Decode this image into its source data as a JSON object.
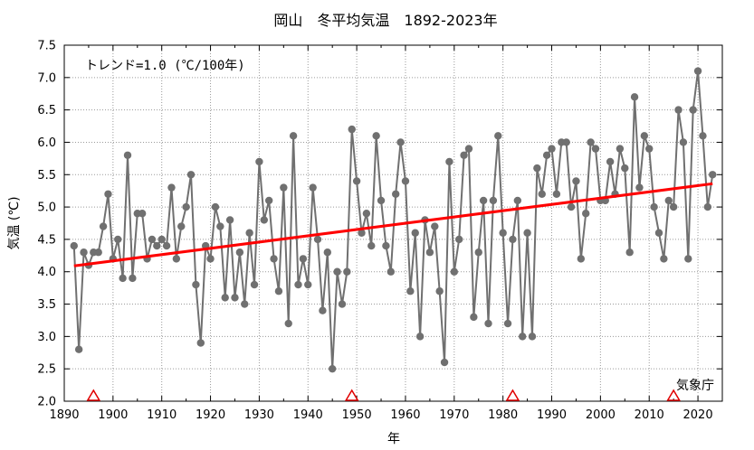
{
  "chart_data": {
    "type": "line",
    "title": "岡山　冬平均気温　1892-2023年",
    "xlabel": "年",
    "ylabel": "気温 (℃)",
    "trend_note": "トレンド=1.0 (℃/100年)",
    "source": "気象庁",
    "xlim": [
      1890,
      2025
    ],
    "ylim": [
      2.0,
      7.5
    ],
    "x_ticks": [
      1890,
      1900,
      1910,
      1920,
      1930,
      1940,
      1950,
      1960,
      1970,
      1980,
      1990,
      2000,
      2010,
      2020
    ],
    "y_ticks": [
      2.0,
      2.5,
      3.0,
      3.5,
      4.0,
      4.5,
      5.0,
      5.5,
      6.0,
      6.5,
      7.0,
      7.5
    ],
    "grid": true,
    "colors": {
      "series": "#707070",
      "trend": "#ff0000",
      "markers": "#e00000"
    },
    "series": [
      {
        "x": [
          1892,
          1893,
          1894,
          1895,
          1896,
          1897,
          1898,
          1899,
          1900,
          1901,
          1902,
          1903,
          1904,
          1905,
          1906,
          1907,
          1908,
          1909,
          1910,
          1911,
          1912,
          1913,
          1914,
          1915,
          1916,
          1917,
          1918,
          1919,
          1920,
          1921,
          1922,
          1923,
          1924,
          1925,
          1926,
          1927,
          1928,
          1929,
          1930,
          1931,
          1932,
          1933,
          1934,
          1935,
          1936,
          1937,
          1938,
          1939,
          1940,
          1941,
          1942,
          1943,
          1944,
          1945,
          1946,
          1947,
          1948,
          1949,
          1950,
          1951,
          1952,
          1953,
          1954,
          1955,
          1956,
          1957,
          1958,
          1959,
          1960,
          1961,
          1962,
          1963,
          1964,
          1965,
          1966,
          1967,
          1968,
          1969,
          1970,
          1971,
          1972,
          1973,
          1974,
          1975,
          1976,
          1977,
          1978,
          1979,
          1980,
          1981,
          1982,
          1983,
          1984,
          1985,
          1986,
          1987,
          1988,
          1989,
          1990,
          1991,
          1992,
          1993,
          1994,
          1995,
          1996,
          1997,
          1998,
          1999,
          2000,
          2001,
          2002,
          2003,
          2004,
          2005,
          2006,
          2007,
          2008,
          2009,
          2010,
          2011,
          2012,
          2013,
          2014,
          2015,
          2016,
          2017,
          2018,
          2019,
          2020,
          2021,
          2022,
          2023
        ],
        "values": [
          4.4,
          2.8,
          4.3,
          4.1,
          4.3,
          4.3,
          4.7,
          5.2,
          4.2,
          4.5,
          3.9,
          5.8,
          3.9,
          4.9,
          4.9,
          4.2,
          4.5,
          4.4,
          4.5,
          4.4,
          5.3,
          4.2,
          4.7,
          5.0,
          5.5,
          3.8,
          2.9,
          4.4,
          4.2,
          5.0,
          4.7,
          3.6,
          4.8,
          3.6,
          4.3,
          3.5,
          4.6,
          3.8,
          5.7,
          4.8,
          5.1,
          4.2,
          3.7,
          5.3,
          3.2,
          6.1,
          3.8,
          4.2,
          3.8,
          5.3,
          4.5,
          3.4,
          4.3,
          2.5,
          4.0,
          3.5,
          4.0,
          6.2,
          5.4,
          4.6,
          4.9,
          4.4,
          6.1,
          5.1,
          4.4,
          4.0,
          5.2,
          6.0,
          5.4,
          3.7,
          4.6,
          3.0,
          4.8,
          4.3,
          4.7,
          3.7,
          2.6,
          5.7,
          4.0,
          4.5,
          5.8,
          5.9,
          3.3,
          4.3,
          5.1,
          3.2,
          5.1,
          6.1,
          4.6,
          3.2,
          4.5,
          5.1,
          3.0,
          4.6,
          3.0,
          5.6,
          5.2,
          5.8,
          5.9,
          5.2,
          6.0,
          6.0,
          5.0,
          5.4,
          4.2,
          4.9,
          6.0,
          5.9,
          5.1,
          5.1,
          5.7,
          5.2,
          5.9,
          5.6,
          4.3,
          6.7,
          5.3,
          6.1,
          5.9,
          5.0,
          4.6,
          4.2,
          5.1,
          5.0,
          6.5,
          6.0,
          4.2,
          6.5,
          7.1,
          6.1,
          5.0,
          5.5
        ]
      }
    ],
    "trend_line": {
      "x": [
        1892,
        2023
      ],
      "y": [
        4.09,
        5.36
      ]
    },
    "markers": [
      1896,
      1949,
      1982,
      2015
    ]
  }
}
